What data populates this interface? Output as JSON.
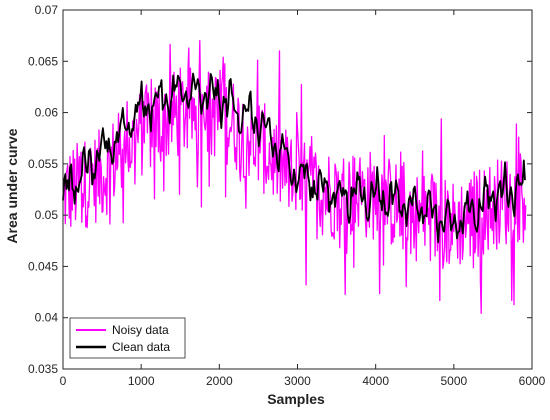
{
  "chart_data": {
    "type": "line",
    "title": "",
    "xlabel": "Samples",
    "ylabel": "Area under curve",
    "xlim": [
      0,
      6000
    ],
    "ylim": [
      0.035,
      0.07
    ],
    "xticks": [
      0,
      1000,
      2000,
      3000,
      4000,
      5000,
      6000
    ],
    "xtick_labels": [
      "0",
      "1000",
      "2000",
      "3000",
      "4000",
      "5000",
      "6000"
    ],
    "yticks": [
      0.035,
      0.04,
      0.045,
      0.05,
      0.055,
      0.06,
      0.065,
      0.07
    ],
    "ytick_labels": [
      "0.035",
      "0.04",
      "0.045",
      "0.05",
      "0.055",
      "0.06",
      "0.065",
      "0.07"
    ],
    "grid": false,
    "legend_position": "bottom-left",
    "series": [
      {
        "name": "Noisy data",
        "color": "#ff00ff",
        "x": [
          0,
          500,
          1000,
          1500,
          2000,
          2500,
          3000,
          3500,
          4000,
          4500,
          5000,
          5500,
          5920
        ],
        "y": [
          0.052,
          0.054,
          0.058,
          0.06,
          0.06,
          0.057,
          0.053,
          0.052,
          0.052,
          0.05,
          0.049,
          0.051,
          0.052
        ]
      },
      {
        "name": "Clean data",
        "color": "#000000",
        "x": [
          0,
          500,
          1000,
          1500,
          2000,
          2500,
          3000,
          3500,
          4000,
          4500,
          5000,
          5500,
          5920
        ],
        "y": [
          0.052,
          0.056,
          0.0605,
          0.062,
          0.0615,
          0.059,
          0.054,
          0.052,
          0.052,
          0.051,
          0.049,
          0.052,
          0.053
        ]
      }
    ]
  }
}
